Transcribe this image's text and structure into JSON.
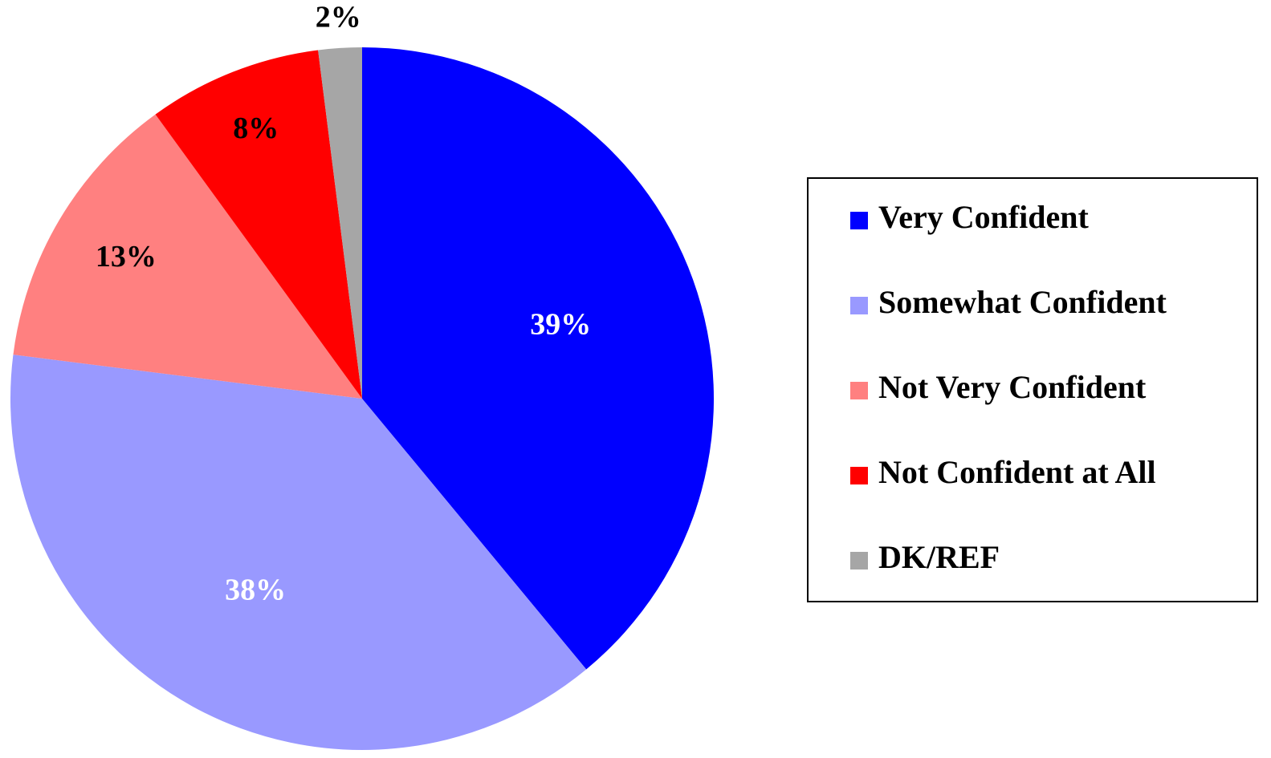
{
  "chart_data": {
    "type": "pie",
    "categories": [
      "Very Confident",
      "Somewhat Confident",
      "Not Very Confident",
      "Not Confident at All",
      "DK/REF"
    ],
    "values": [
      39,
      38,
      13,
      8,
      2
    ],
    "value_labels": [
      "39%",
      "38%",
      "13%",
      "8%",
      "2%"
    ],
    "colors": [
      "#0000ff",
      "#9999ff",
      "#ff8080",
      "#ff0000",
      "#a6a6a6"
    ],
    "label_colors": [
      "#ffffff",
      "#ffffff",
      "#000000",
      "#000000",
      "#000000"
    ],
    "legend": "right"
  }
}
